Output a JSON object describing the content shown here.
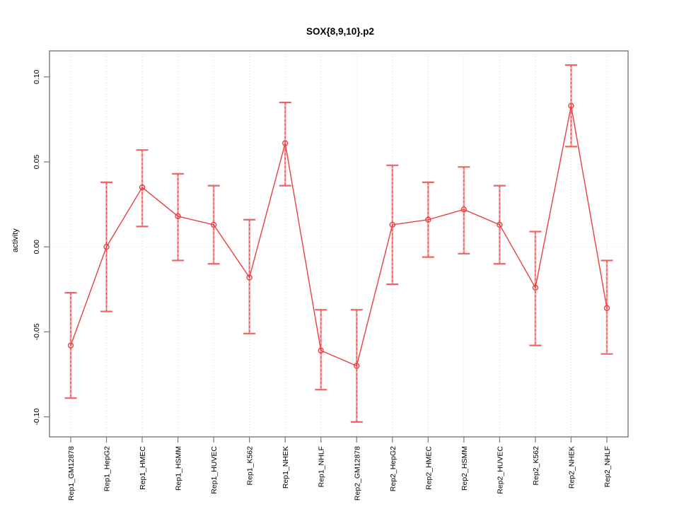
{
  "chart_data": {
    "type": "line",
    "title": "SOX{8,9,10}.p2",
    "xlabel": "",
    "ylabel": "activity",
    "ylim": [
      -0.1118,
      0.1153
    ],
    "yticks": [
      -0.1,
      -0.05,
      0.0,
      0.05,
      0.1
    ],
    "ytick_labels": [
      "-0.10",
      "-0.05",
      "0.00",
      "0.05",
      "0.10"
    ],
    "grid": "vertical dotted gridline at each category plus dotted horizontal line at zero; legend none",
    "marker": "open-circle",
    "categories": [
      "Rep1_GM12878",
      "Rep1_HepG2",
      "Rep1_HMEC",
      "Rep1_HSMM",
      "Rep1_HUVEC",
      "Rep1_K562",
      "Rep1_NHEK",
      "Rep1_NHLF",
      "Rep2_GM12878",
      "Rep2_HepG2",
      "Rep2_HMEC",
      "Rep2_HSMM",
      "Rep2_HUVEC",
      "Rep2_K562",
      "Rep2_NHEK",
      "Rep2_NHLF"
    ],
    "series": [
      {
        "name": "activity",
        "values": [
          -0.058,
          0.0,
          0.035,
          0.018,
          0.013,
          -0.018,
          0.061,
          -0.061,
          -0.07,
          0.013,
          0.016,
          0.022,
          0.013,
          -0.024,
          0.083,
          -0.036
        ],
        "lower": [
          -0.089,
          -0.038,
          0.012,
          -0.008,
          -0.01,
          -0.051,
          0.036,
          -0.084,
          -0.103,
          -0.022,
          -0.006,
          -0.004,
          -0.01,
          -0.058,
          0.059,
          -0.063
        ],
        "upper": [
          -0.027,
          0.038,
          0.057,
          0.043,
          0.036,
          0.016,
          0.085,
          -0.037,
          -0.037,
          0.048,
          0.038,
          0.047,
          0.036,
          0.009,
          0.107,
          -0.008
        ]
      }
    ],
    "colors": {
      "series": "#e84040",
      "errorbar": "#f5a2a2",
      "errorbar_cap": "#ee6363",
      "grid": "#d9d9d9",
      "axis": "#808080",
      "text": "#000000",
      "background": "#ffffff"
    }
  }
}
